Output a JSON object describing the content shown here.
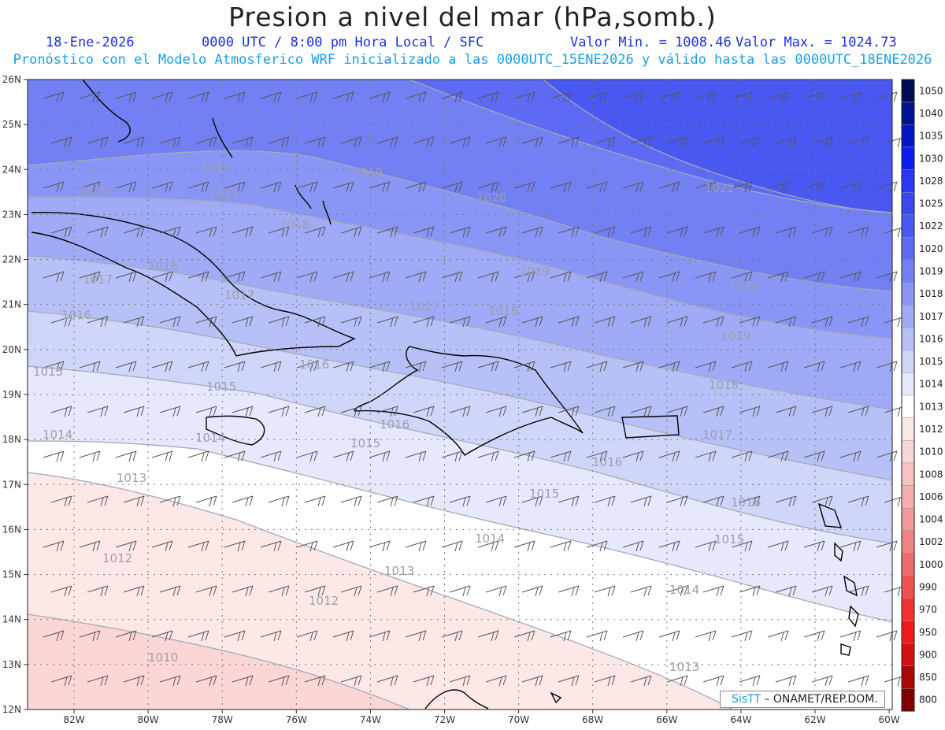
{
  "header": {
    "title": "Presion a nivel del mar (hPa,somb.)",
    "date": "18-Ene-2026",
    "time_line": "0000 UTC / 8:00 pm Hora Local / SFC",
    "min_label": "Valor Min. = 1008.46",
    "max_label": "Valor Max. = 1024.73",
    "model_line": "Pronóstico con el Modelo Atmosferico WRF inicializado a las 0000UTC_15ENE2026 y válido hasta las 0000UTC_18ENE2026"
  },
  "map": {
    "lat_labels": [
      "26N",
      "25N",
      "24N",
      "23N",
      "22N",
      "21N",
      "20N",
      "19N",
      "18N",
      "17N",
      "16N",
      "15N",
      "14N",
      "13N",
      "12N"
    ],
    "lon_labels": [
      "82W",
      "80W",
      "78W",
      "76W",
      "74W",
      "72W",
      "70W",
      "68W",
      "66W",
      "64W",
      "62W",
      "60W"
    ],
    "contour_labels": [
      {
        "text": "1022"
      },
      {
        "text": "1019"
      },
      {
        "text": "1019"
      },
      {
        "text": "1019"
      },
      {
        "text": "1020"
      },
      {
        "text": "1022"
      },
      {
        "text": "1018"
      },
      {
        "text": "1018"
      },
      {
        "text": "1017"
      },
      {
        "text": "1017"
      },
      {
        "text": "1016"
      },
      {
        "text": "1017"
      },
      {
        "text": "1018"
      },
      {
        "text": "1019"
      },
      {
        "text": "1020"
      },
      {
        "text": "1019"
      },
      {
        "text": "1015"
      },
      {
        "text": "1016"
      },
      {
        "text": "1015"
      },
      {
        "text": "1018"
      },
      {
        "text": "1014"
      },
      {
        "text": "1014"
      },
      {
        "text": "1016"
      },
      {
        "text": "1015"
      },
      {
        "text": "1017"
      },
      {
        "text": "1013"
      },
      {
        "text": "1016"
      },
      {
        "text": "1015"
      },
      {
        "text": "1016"
      },
      {
        "text": "1014"
      },
      {
        "text": "1015"
      },
      {
        "text": "1012"
      },
      {
        "text": "1013"
      },
      {
        "text": "1014"
      },
      {
        "text": "1012"
      },
      {
        "text": "1010"
      },
      {
        "text": "1013"
      }
    ]
  },
  "colorbar": {
    "levels": [
      "1050",
      "1040",
      "1035",
      "1030",
      "1028",
      "1025",
      "1022",
      "1020",
      "1019",
      "1018",
      "1017",
      "1016",
      "1015",
      "1014",
      "1013",
      "1012",
      "1010",
      "1008",
      "1006",
      "1004",
      "1002",
      "1000",
      "990",
      "970",
      "950",
      "900",
      "850",
      "800"
    ],
    "colors": [
      "#000a55",
      "#00128f",
      "#0018c4",
      "#0a1ef2",
      "#2a38f2",
      "#3a48f2",
      "#4a58f2",
      "#5c6af4",
      "#7280f4",
      "#8a96f6",
      "#a0aaf6",
      "#b8c0f8",
      "#d0d6fa",
      "#e6e9fc",
      "#ffffff",
      "#fde8e8",
      "#fbd6d6",
      "#f8c2c2",
      "#f5aeae",
      "#f29898",
      "#ef8282",
      "#ec6a6a",
      "#f05050",
      "#f23232",
      "#f01818",
      "#d01010",
      "#a80808",
      "#800000"
    ]
  },
  "credit": {
    "logo": "SisTT",
    "org": "– ONAMET/REP.DOM."
  }
}
